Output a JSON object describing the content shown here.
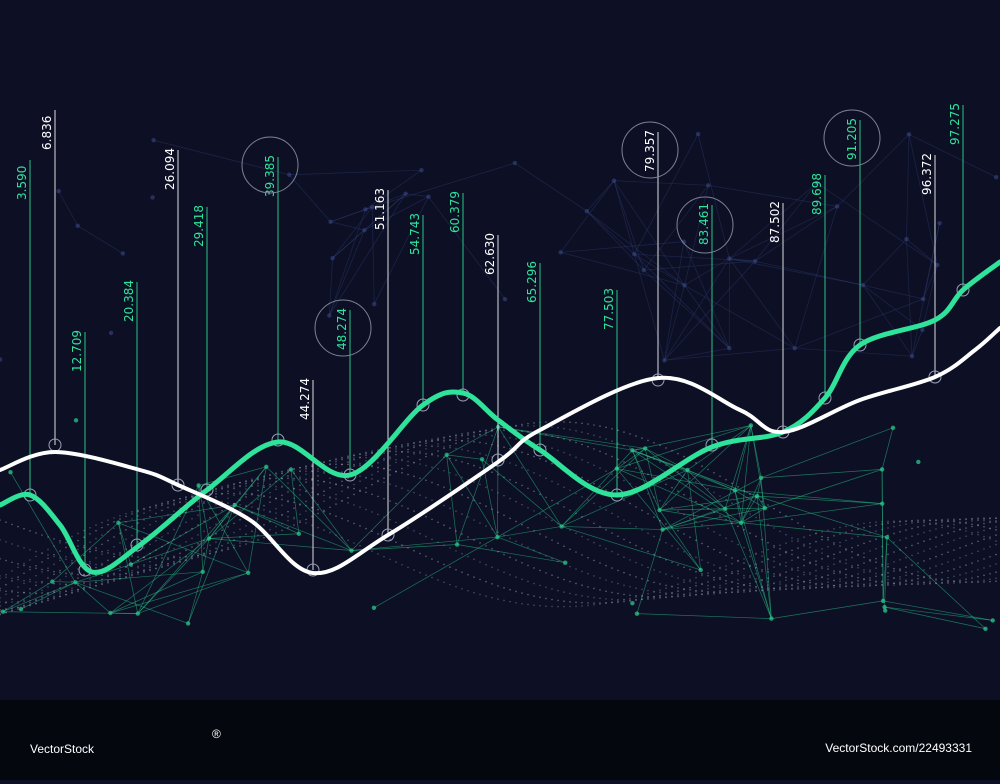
{
  "labels": [
    {
      "text": "3.590",
      "color": "#2fe39a"
    },
    {
      "text": "6.836",
      "color": "#ffffff"
    },
    {
      "text": "12.709",
      "color": "#2fe39a"
    },
    {
      "text": "20.384",
      "color": "#2fe39a"
    },
    {
      "text": "26.094",
      "color": "#ffffff"
    },
    {
      "text": "29.418",
      "color": "#2fe39a"
    },
    {
      "text": "39.385",
      "color": "#2fe39a"
    },
    {
      "text": "44.274",
      "color": "#ffffff"
    },
    {
      "text": "48.274",
      "color": "#2fe39a"
    },
    {
      "text": "51.163",
      "color": "#ffffff"
    },
    {
      "text": "54.743",
      "color": "#2fe39a"
    },
    {
      "text": "60.379",
      "color": "#2fe39a"
    },
    {
      "text": "62.630",
      "color": "#ffffff"
    },
    {
      "text": "65.296",
      "color": "#2fe39a"
    },
    {
      "text": "77.503",
      "color": "#2fe39a"
    },
    {
      "text": "79.357",
      "color": "#ffffff"
    },
    {
      "text": "83.461",
      "color": "#2fe39a"
    },
    {
      "text": "87.502",
      "color": "#ffffff"
    },
    {
      "text": "89.698",
      "color": "#2fe39a"
    },
    {
      "text": "91.205",
      "color": "#2fe39a"
    },
    {
      "text": "96.372",
      "color": "#ffffff"
    },
    {
      "text": "97.275",
      "color": "#2fe39a"
    }
  ],
  "watermark": {
    "brand": "VectorStock",
    "registered": "®",
    "url": "VectorStock.com/22493331"
  }
}
